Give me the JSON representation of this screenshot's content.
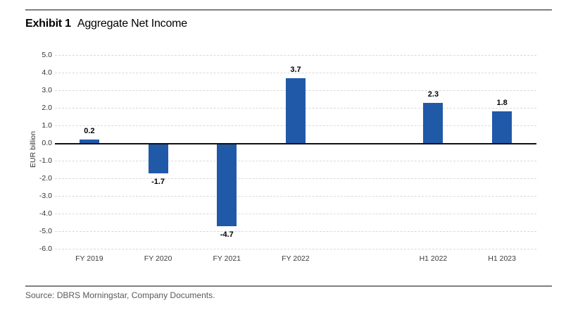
{
  "page": {
    "title_prefix": "Exhibit 1",
    "title": "Aggregate Net Income",
    "source": "Source: DBRS Morningstar, Company Documents."
  },
  "colors": {
    "bar": "#2059A8",
    "gridline": "#D9D9D9",
    "zero_line": "#111111",
    "rule": "#808080",
    "source_text": "#595959"
  },
  "chart_data": {
    "type": "bar",
    "title": "Aggregate Net Income",
    "xlabel": "",
    "ylabel": "EUR billion",
    "ylim": [
      -6.0,
      5.0
    ],
    "ytick_step": 1.0,
    "grid": "horizontal-dashed",
    "legend": "none",
    "total_slots": 7,
    "categories": [
      "FY 2019",
      "FY 2020",
      "FY 2021",
      "FY 2022",
      "H1 2022",
      "H1 2023"
    ],
    "slots": [
      0,
      1,
      2,
      3,
      5,
      6
    ],
    "values": [
      0.2,
      -1.7,
      -4.7,
      3.7,
      2.3,
      1.8
    ],
    "value_labels": [
      "0.2",
      "-1.7",
      "-4.7",
      "3.7",
      "2.3",
      "1.8"
    ]
  }
}
